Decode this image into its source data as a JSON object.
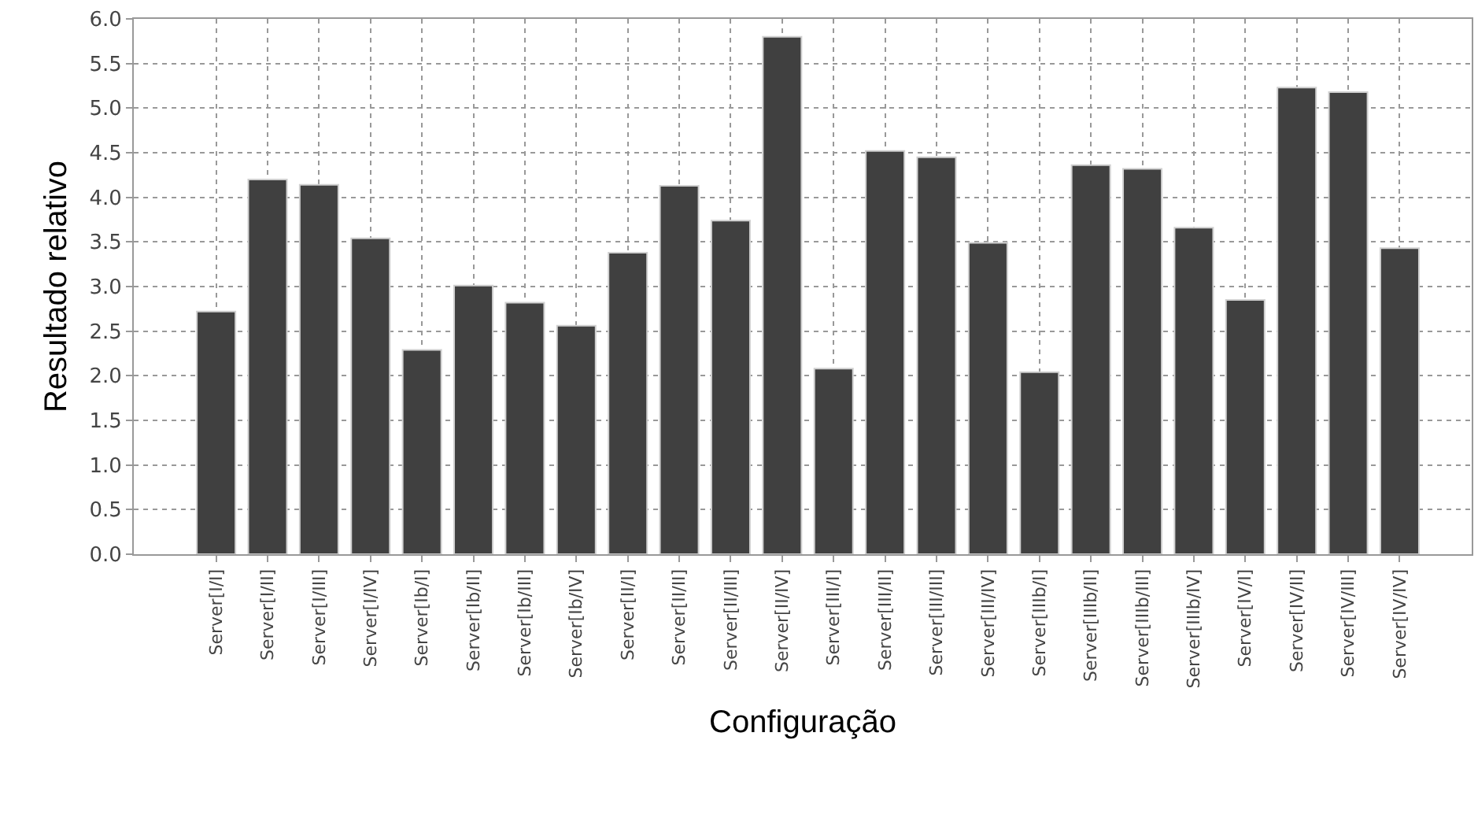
{
  "chart_data": {
    "type": "bar",
    "xlabel": "Configuração",
    "ylabel": "Resultado relativo",
    "categories": [
      "Server[I/I]",
      "Server[I/II]",
      "Server[I/III]",
      "Server[I/IV]",
      "Server[Ib/I]",
      "Server[Ib/II]",
      "Server[Ib/III]",
      "Server[Ib/IV]",
      "Server[II/I]",
      "Server[II/II]",
      "Server[II/III]",
      "Server[II/IV]",
      "Server[III/I]",
      "Server[III/II]",
      "Server[III/III]",
      "Server[III/IV]",
      "Server[IIIb/I]",
      "Server[IIIb/II]",
      "Server[IIIb/III]",
      "Server[IIIb/IV]",
      "Server[IV/I]",
      "Server[IV/II]",
      "Server[IV/III]",
      "Server[IV/IV]"
    ],
    "values": [
      2.72,
      4.2,
      4.14,
      3.54,
      2.29,
      3.01,
      2.82,
      2.56,
      3.38,
      4.13,
      3.74,
      5.8,
      2.08,
      4.52,
      4.45,
      3.49,
      2.04,
      4.36,
      4.32,
      3.66,
      2.85,
      5.23,
      5.18,
      3.43
    ],
    "color": "#404040",
    "ylim": [
      0,
      6
    ],
    "yticks": [
      {
        "value": 0,
        "label": "0.0"
      },
      {
        "value": 0.5,
        "label": "0.5"
      },
      {
        "value": 1,
        "label": "1.0"
      },
      {
        "value": 1.5,
        "label": "1.5"
      },
      {
        "value": 2,
        "label": "2.0"
      },
      {
        "value": 2.5,
        "label": "2.5"
      },
      {
        "value": 3,
        "label": "3.0"
      },
      {
        "value": 3.5,
        "label": "3.5"
      },
      {
        "value": 4,
        "label": "4.0"
      },
      {
        "value": 4.5,
        "label": "4.5"
      },
      {
        "value": 5,
        "label": "5.0"
      },
      {
        "value": 5.5,
        "label": "5.5"
      },
      {
        "value": 6,
        "label": "6.0"
      }
    ],
    "grid": true
  }
}
